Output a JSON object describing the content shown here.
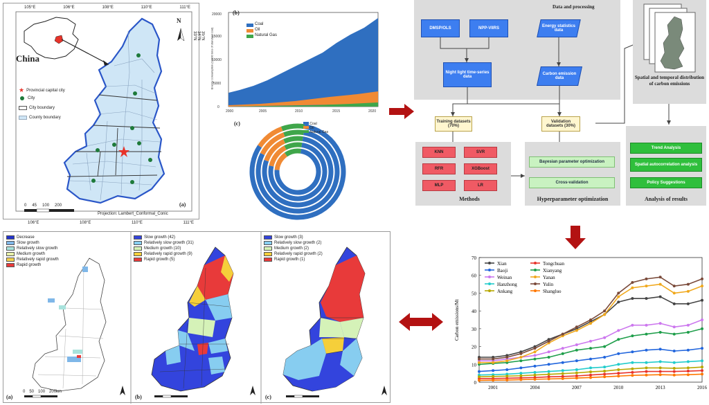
{
  "panel_a": {
    "inset_label": "China",
    "tag": "(a)",
    "north": "N",
    "legend": [
      {
        "label": "Provincial capital city",
        "symbol": "star",
        "color": "#e8332a"
      },
      {
        "label": "City",
        "symbol": "dot",
        "color": "#1e7a3a"
      },
      {
        "label": "City boundary",
        "symbol": "box-white"
      },
      {
        "label": "County boundary",
        "symbol": "box-blue",
        "color": "#cfe6f6"
      }
    ],
    "projection": "Projection: Lambert_Conformal_Conic",
    "scale_labels": [
      "0",
      "45",
      "100",
      "200"
    ],
    "lon_ticks": [
      "105°E",
      "106°E",
      "108°E",
      "110°E",
      "111°E"
    ],
    "lon_ticks_bottom": [
      "106°E",
      "108°E",
      "110°E",
      "111°E"
    ],
    "lat_ticks": [
      "38°N",
      "37°N",
      "36°N",
      "35°N",
      "34°N",
      "33°N"
    ]
  },
  "panel_b": {
    "tag": "(b)",
    "ylabel": "Energy consumption (10000 tons of standard coal)",
    "legend": [
      "Coal",
      "Oil",
      "Natural Gas"
    ],
    "colors": [
      "#2f6fc0",
      "#f08a34",
      "#3fa64a"
    ]
  },
  "panel_c": {
    "tag": "(c)",
    "legend": [
      "Coal",
      "Oil",
      "Natural Gas"
    ]
  },
  "flow": {
    "title": "Data and processing",
    "dmsp": "DMSP/OLS",
    "viirs": "NPP-VIIRS",
    "energy": "Energy statistics data",
    "ntl": "Night light time-series data",
    "carbon": "Carbon emission data",
    "train": "Training datasets (70%)",
    "valid": "Validation datasets (30%)",
    "methods": [
      "KNN",
      "SVR",
      "RFR",
      "XGBoost",
      "MLP",
      "LR"
    ],
    "methods_cap": "Methods",
    "hyper": [
      "Bayesian parameter optimization",
      "Cross-validation"
    ],
    "hyper_cap": "Hyperparameter optimization",
    "analysis": [
      "Trend Analysis",
      "Spatial autocorrelation analysis",
      "Policy Suggestions"
    ],
    "analysis_cap": "Analysis of results",
    "spatial_cap": "Spatial and temporal distribution of carbon emissions"
  },
  "bottom_maps": {
    "a": {
      "tag": "(a)",
      "legend": [
        "Decrease",
        "Slow growth",
        "Relatively slow growth",
        "Medium growth",
        "Relatively rapid growth",
        "Rapid growth"
      ],
      "colors": [
        "#2233cc",
        "#7fb7e8",
        "#a8e2dc",
        "#e8f0a8",
        "#f3d04a",
        "#e83a3a"
      ]
    },
    "b": {
      "tag": "(b)",
      "legend": [
        "Slow growth (42)",
        "Relatively slow growth (31)",
        "Medium growth (10)",
        "Relatively rapid growth (9)",
        "Rapid growth (5)"
      ],
      "colors": [
        "#3344dd",
        "#87cdf0",
        "#d5f2b8",
        "#f5cf3a",
        "#e83a3a"
      ]
    },
    "c": {
      "tag": "(c)",
      "legend": [
        "Slow growth (3)",
        "Relatively slow growth (2)",
        "Medium growth (2)",
        "Relatively rapid growth (2)",
        "Rapid growth (1)"
      ],
      "colors": [
        "#3344dd",
        "#87cdf0",
        "#d5f2b8",
        "#f5cf3a",
        "#e83a3a"
      ]
    },
    "scale_labels": [
      "0",
      "50",
      "100",
      "200km"
    ]
  },
  "chart_data": {
    "type": "line",
    "xlabel": "",
    "ylabel": "Carbon emissions/Mt",
    "x": [
      2000,
      2001,
      2002,
      2003,
      2004,
      2005,
      2006,
      2007,
      2008,
      2009,
      2010,
      2011,
      2012,
      2013,
      2014,
      2015,
      2016
    ],
    "xticks": [
      "2001",
      "2004",
      "2007",
      "2010",
      "2013",
      "2016"
    ],
    "ylim": [
      0,
      70
    ],
    "yticks": [
      0,
      10,
      20,
      30,
      40,
      50,
      60,
      70
    ],
    "legend_placement": "top-left",
    "series": [
      {
        "name": "Xian",
        "color": "#444444",
        "values": [
          14,
          14,
          15,
          17,
          20,
          24,
          27,
          30,
          34,
          38,
          45,
          47,
          47,
          48,
          44,
          44,
          46
        ]
      },
      {
        "name": "Tongchuan",
        "color": "#e8332a",
        "values": [
          2,
          2,
          2.2,
          2.4,
          2.6,
          3,
          3.2,
          3.5,
          4,
          4.5,
          5,
          5.5,
          6,
          6,
          6,
          6.2,
          6.5
        ]
      },
      {
        "name": "Baoji",
        "color": "#2266dd",
        "values": [
          6,
          6.5,
          7,
          8,
          9,
          10,
          11,
          12,
          13,
          14,
          16,
          17,
          18,
          18.5,
          17.5,
          18,
          19
        ]
      },
      {
        "name": "Xianyang",
        "color": "#1e9e4a",
        "values": [
          10,
          10.5,
          11,
          12,
          13,
          14,
          16,
          18,
          19,
          20,
          24,
          26,
          27,
          28,
          27,
          28,
          30
        ]
      },
      {
        "name": "Weinan",
        "color": "#cc77ee",
        "values": [
          12,
          12,
          13,
          14,
          15,
          17,
          19,
          21,
          23,
          25,
          29,
          32,
          32,
          33,
          31,
          32,
          35
        ]
      },
      {
        "name": "Yanan",
        "color": "#f0a81c",
        "values": [
          11,
          11,
          12,
          14,
          17,
          22,
          26,
          29,
          33,
          38,
          48,
          53,
          54,
          55,
          50,
          51,
          54
        ]
      },
      {
        "name": "Hanzhong",
        "color": "#22cccc",
        "values": [
          4,
          4.2,
          4.5,
          5,
          5.5,
          6,
          6.5,
          7,
          8,
          8.5,
          10,
          11,
          11,
          11.5,
          11,
          11.5,
          12
        ]
      },
      {
        "name": "Yulin",
        "color": "#7a4a3a",
        "values": [
          13,
          13,
          14,
          16,
          19,
          23,
          27,
          31,
          35,
          40,
          50,
          56,
          58,
          59,
          54,
          55,
          58
        ]
      },
      {
        "name": "Ankang",
        "color": "#b8a800",
        "values": [
          3,
          3.2,
          3.4,
          3.6,
          4,
          4.4,
          4.8,
          5.2,
          5.8,
          6.2,
          7,
          7.5,
          8,
          8,
          7.8,
          8,
          8.5
        ]
      },
      {
        "name": "Shangluo",
        "color": "#ff7700",
        "values": [
          1,
          1.1,
          1.2,
          1.4,
          1.6,
          1.8,
          2,
          2.3,
          2.6,
          3,
          3.4,
          3.8,
          4,
          4.2,
          4,
          4.2,
          4.5
        ]
      }
    ]
  }
}
